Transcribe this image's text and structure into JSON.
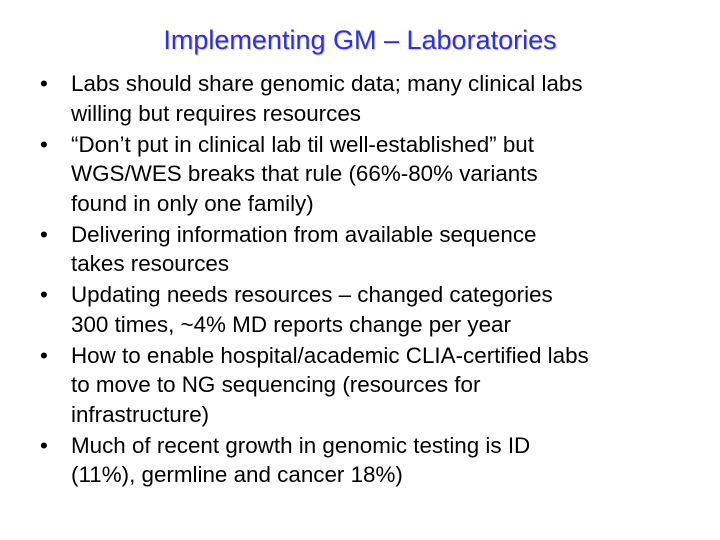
{
  "slide": {
    "title": "Implementing GM – Laboratories",
    "bullet_symbol": "•",
    "bullets": [
      [
        "Labs should share genomic data; many clinical labs",
        "willing but requires resources"
      ],
      [
        "“Don’t put in clinical lab til well-established” but",
        "WGS/WES breaks that rule (66%-80% variants",
        "found in only one family)"
      ],
      [
        "Delivering information from available sequence",
        "takes resources"
      ],
      [
        "Updating needs resources – changed categories",
        "300 times, ~4% MD reports change per year"
      ],
      [
        "How to enable hospital/academic CLIA-certified labs",
        "to move to NG sequencing (resources for",
        "infrastructure)"
      ],
      [
        "Much of recent growth in genomic testing is ID",
        "(11%), germline and cancer 18%)"
      ]
    ]
  },
  "colors": {
    "title": "#3333cc",
    "text": "#000000",
    "background": "#ffffff"
  }
}
